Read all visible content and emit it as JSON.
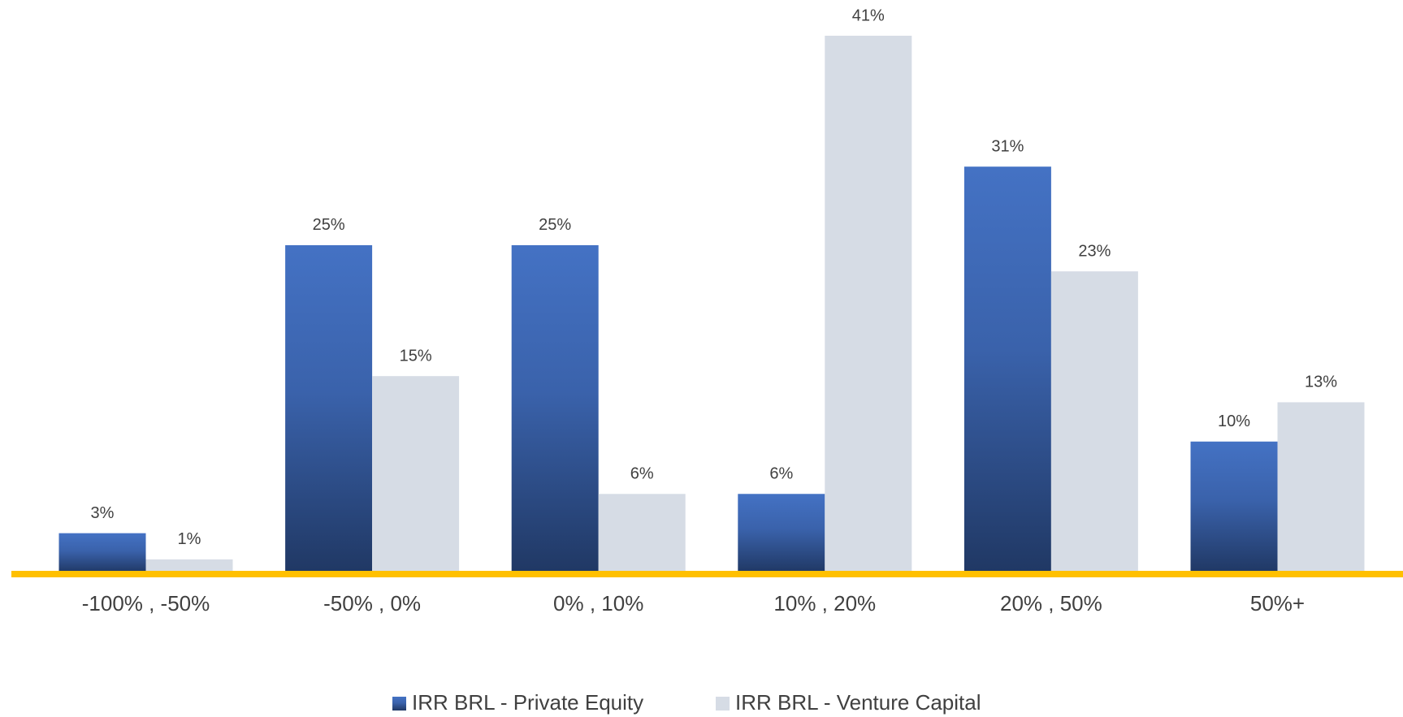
{
  "chart_data": {
    "type": "bar",
    "categories": [
      "-100% , -50%",
      "-50% , 0%",
      "0% , 10%",
      "10% , 20%",
      "20% , 50%",
      "50%+"
    ],
    "series": [
      {
        "name": "IRR BRL - Private Equity",
        "color": "#4472c4",
        "values": [
          3,
          25,
          25,
          6,
          31,
          10
        ],
        "value_labels": [
          "3%",
          "25%",
          "25%",
          "6%",
          "31%",
          "10%"
        ]
      },
      {
        "name": "IRR BRL - Venture Capital",
        "color": "#d6dce5",
        "values": [
          1,
          15,
          6,
          41,
          23,
          13
        ],
        "value_labels": [
          "1%",
          "15%",
          "6%",
          "41%",
          "23%",
          "13%"
        ]
      }
    ],
    "legend": "bottom"
  }
}
